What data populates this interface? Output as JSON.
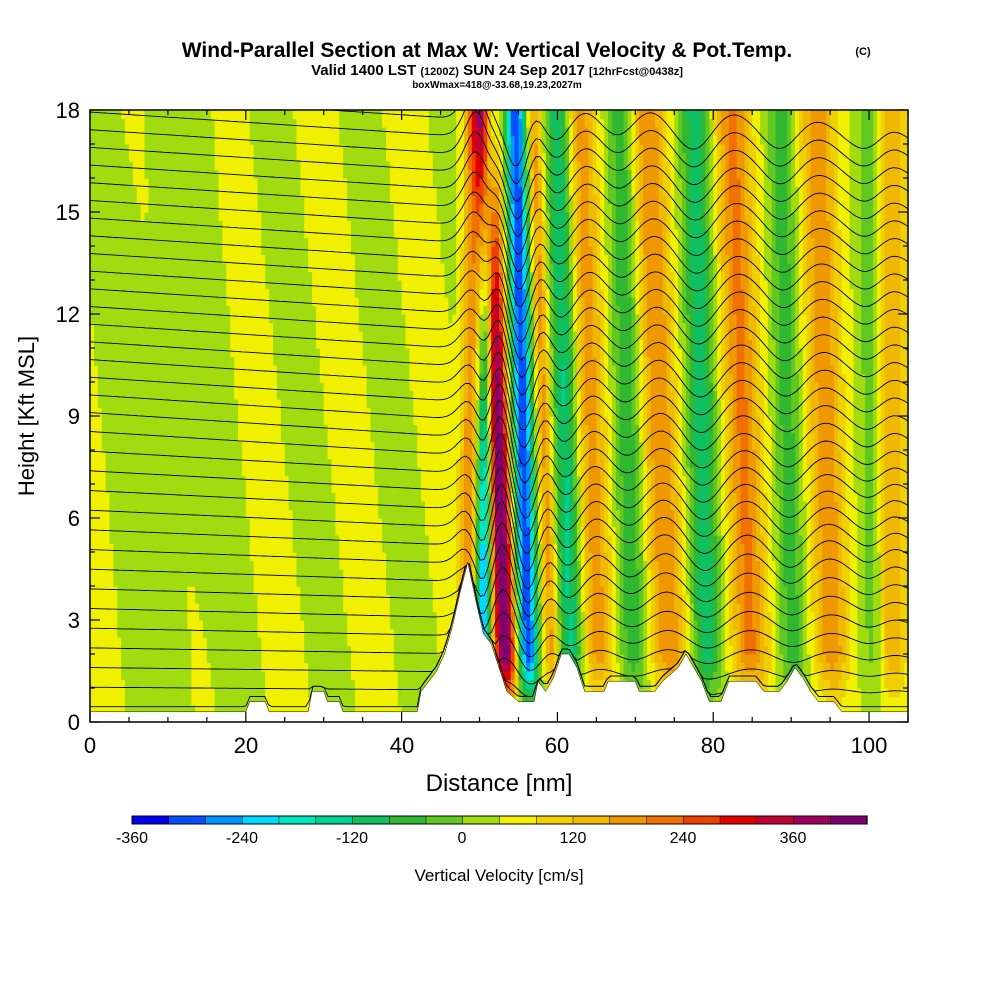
{
  "chart_data": {
    "type": "heatmap",
    "title": "Wind-Parallel Section at Max W: Vertical Velocity & Pot.Temp.",
    "copyright": "(C)",
    "subtitle_main": "Valid 1400 LST",
    "subtitle_utc": "(1200Z)",
    "subtitle_date": "SUN 24 Sep 2017",
    "subtitle_fcst": "[12hrFcst@0438z]",
    "box_info": "boxWmax=418@-33.68,19.23,2027m",
    "xlabel": "Distance [nm]",
    "ylabel": "Height [Kft MSL]",
    "xlim": [
      0,
      105
    ],
    "ylim": [
      0,
      18
    ],
    "x_ticks": [
      "0",
      "20",
      "40",
      "60",
      "80",
      "100"
    ],
    "y_ticks": [
      "0",
      "3",
      "6",
      "9",
      "12",
      "15",
      "18"
    ],
    "colorbar": {
      "label": "Vertical Velocity [cm/s]",
      "min": -400,
      "max": 400,
      "step": 40,
      "tick_labels": [
        "-360",
        "-240",
        "-120",
        "0",
        "120",
        "240",
        "360"
      ],
      "colors": [
        "#0000ee",
        "#0050ff",
        "#0096ff",
        "#00d8ff",
        "#00e8c0",
        "#00d090",
        "#10c060",
        "#30b830",
        "#60c820",
        "#a0dc10",
        "#f0f000",
        "#f0d000",
        "#f0b800",
        "#f09800",
        "#f07000",
        "#f04000",
        "#e00000",
        "#c00030",
        "#a00060",
        "#800070"
      ]
    },
    "vertical_velocity_features": [
      {
        "x": 48.5,
        "w": 1.2,
        "amp": 150,
        "lean": 0.05
      },
      {
        "x": 50.5,
        "w": 1.0,
        "amp": -300,
        "lean": 0.06
      },
      {
        "x": 53.0,
        "w": 1.4,
        "amp": 418,
        "lean": -0.16
      },
      {
        "x": 56.0,
        "w": 1.3,
        "amp": -360,
        "lean": -0.1
      },
      {
        "x": 59.0,
        "w": 1.0,
        "amp": 140,
        "lean": -0.15
      },
      {
        "x": 61.5,
        "w": 1.6,
        "amp": -170,
        "lean": -0.1
      },
      {
        "x": 65.0,
        "w": 2.0,
        "amp": 140,
        "lean": -0.15
      },
      {
        "x": 69.5,
        "w": 1.8,
        "amp": -110,
        "lean": -0.1
      },
      {
        "x": 74.0,
        "w": 2.2,
        "amp": 160,
        "lean": -0.18
      },
      {
        "x": 79.0,
        "w": 1.9,
        "amp": -150,
        "lean": -0.1
      },
      {
        "x": 84.5,
        "w": 2.3,
        "amp": 170,
        "lean": -0.15
      },
      {
        "x": 90.0,
        "w": 1.7,
        "amp": -100,
        "lean": -0.1
      },
      {
        "x": 95.0,
        "w": 2.2,
        "amp": 150,
        "lean": -0.12
      },
      {
        "x": 100.5,
        "w": 1.6,
        "amp": -60,
        "lean": -0.05
      },
      {
        "x": 103.0,
        "w": 1.8,
        "amp": 120,
        "lean": 0.0
      }
    ],
    "terrain_kft": [
      [
        0,
        0.3
      ],
      [
        20,
        0.3
      ],
      [
        20.5,
        0.6
      ],
      [
        22.5,
        0.6
      ],
      [
        23,
        0.3
      ],
      [
        28,
        0.3
      ],
      [
        28.5,
        0.9
      ],
      [
        30,
        0.9
      ],
      [
        30.5,
        0.6
      ],
      [
        32,
        0.6
      ],
      [
        32.5,
        0.3
      ],
      [
        42,
        0.3
      ],
      [
        42.5,
        0.9
      ],
      [
        43.5,
        1.2
      ],
      [
        44.5,
        1.5
      ],
      [
        45.5,
        2.0
      ],
      [
        46.5,
        2.8
      ],
      [
        47.5,
        3.8
      ],
      [
        48.5,
        4.7
      ],
      [
        49.5,
        3.6
      ],
      [
        50.5,
        2.6
      ],
      [
        51.5,
        2.3
      ],
      [
        52.5,
        1.6
      ],
      [
        53.5,
        0.9
      ],
      [
        55,
        0.6
      ],
      [
        57,
        0.6
      ],
      [
        57.5,
        1.2
      ],
      [
        58.5,
        0.9
      ],
      [
        59.5,
        1.3
      ],
      [
        60.5,
        2.0
      ],
      [
        61.5,
        2.0
      ],
      [
        62.5,
        1.6
      ],
      [
        63.5,
        0.9
      ],
      [
        66,
        0.9
      ],
      [
        66.5,
        1.2
      ],
      [
        70,
        1.2
      ],
      [
        70.5,
        0.9
      ],
      [
        72.5,
        0.9
      ],
      [
        73.5,
        1.2
      ],
      [
        75.5,
        1.6
      ],
      [
        76.5,
        2.0
      ],
      [
        77.5,
        1.6
      ],
      [
        78.5,
        1.2
      ],
      [
        79.5,
        0.6
      ],
      [
        81,
        0.6
      ],
      [
        82,
        1.2
      ],
      [
        85.5,
        1.2
      ],
      [
        86.5,
        0.9
      ],
      [
        88.5,
        0.9
      ],
      [
        89.5,
        1.2
      ],
      [
        90.5,
        1.6
      ],
      [
        91.5,
        1.3
      ],
      [
        92.5,
        0.9
      ],
      [
        93.5,
        0.6
      ],
      [
        95.5,
        0.6
      ],
      [
        96.5,
        0.3
      ],
      [
        105,
        0.3
      ]
    ],
    "theta_contours": {
      "count": 34,
      "color": "#000000"
    }
  }
}
